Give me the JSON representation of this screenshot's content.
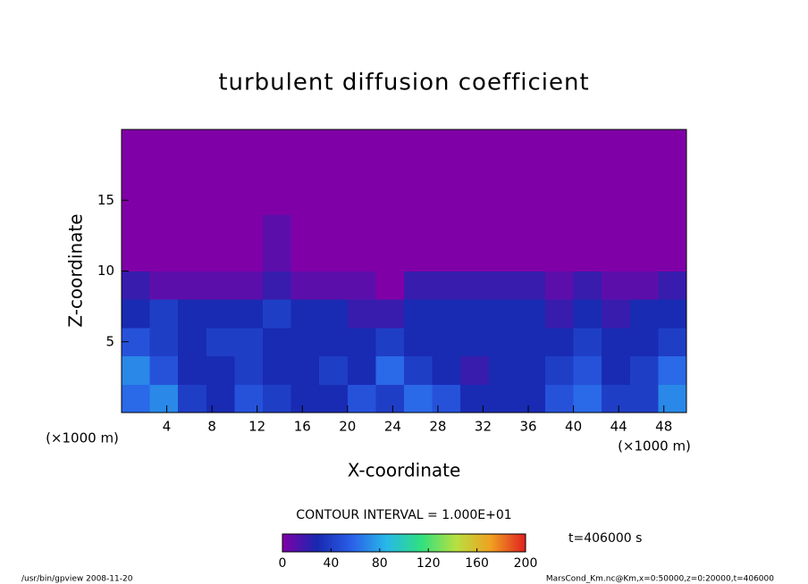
{
  "chart_data": {
    "type": "contour",
    "title": "turbulent diffusion coefficient",
    "x_label": "X-coordinate",
    "y_label": "Z-coordinate",
    "x_unit": "(×1000 m)",
    "y_unit": "(×1000 m)",
    "xlim": [
      0,
      50
    ],
    "xticks": [
      4,
      8,
      12,
      16,
      20,
      24,
      28,
      32,
      36,
      40,
      44,
      48
    ],
    "ylim": [
      0,
      20
    ],
    "yticks": [
      5,
      10,
      15
    ],
    "z": [
      [
        60,
        70,
        40,
        30,
        50,
        40,
        30,
        30,
        50,
        40,
        60,
        50,
        30,
        30,
        30,
        50,
        60,
        40,
        40,
        70
      ],
      [
        70,
        50,
        30,
        30,
        40,
        30,
        30,
        40,
        30,
        60,
        40,
        30,
        20,
        30,
        30,
        40,
        50,
        30,
        40,
        60
      ],
      [
        50,
        40,
        30,
        40,
        40,
        30,
        30,
        30,
        30,
        40,
        30,
        30,
        30,
        30,
        30,
        30,
        40,
        30,
        30,
        40
      ],
      [
        30,
        40,
        30,
        30,
        30,
        40,
        30,
        30,
        20,
        20,
        30,
        30,
        30,
        30,
        30,
        20,
        30,
        20,
        30,
        30
      ],
      [
        20,
        10,
        10,
        10,
        10,
        20,
        10,
        10,
        10,
        0,
        20,
        20,
        20,
        20,
        20,
        10,
        20,
        10,
        10,
        20
      ],
      [
        0,
        0,
        0,
        0,
        0,
        10,
        0,
        0,
        0,
        0,
        0,
        0,
        0,
        0,
        0,
        0,
        0,
        0,
        0,
        0
      ],
      [
        0,
        0,
        0,
        0,
        0,
        10,
        0,
        0,
        0,
        0,
        0,
        0,
        0,
        0,
        0,
        0,
        0,
        0,
        0,
        0
      ],
      [
        0,
        0,
        0,
        0,
        0,
        0,
        0,
        0,
        0,
        0,
        0,
        0,
        0,
        0,
        0,
        0,
        0,
        0,
        0,
        0
      ],
      [
        0,
        0,
        0,
        0,
        0,
        0,
        0,
        0,
        0,
        0,
        0,
        0,
        0,
        0,
        0,
        0,
        0,
        0,
        0,
        0
      ],
      [
        0,
        0,
        0,
        0,
        0,
        0,
        0,
        0,
        0,
        0,
        0,
        0,
        0,
        0,
        0,
        0,
        0,
        0,
        0,
        0
      ]
    ],
    "contour_interval_label": "CONTOUR INTERVAL = 1.000E+01",
    "colorbar_lim": [
      0,
      200
    ],
    "colorbar_ticks": [
      0,
      40,
      80,
      120,
      160,
      200
    ],
    "colors": [
      "#8000a8",
      "#1828b0",
      "#2a60e8",
      "#28b8e8",
      "#30e080",
      "#b8e040",
      "#f0a020",
      "#e02020"
    ],
    "time_label": "t=406000 s",
    "footer_left": "/usr/bin/gpview  2008-11-20",
    "footer_right": "MarsCond_Km.nc@Km,x=0:50000,z=0:20000,t=406000"
  }
}
